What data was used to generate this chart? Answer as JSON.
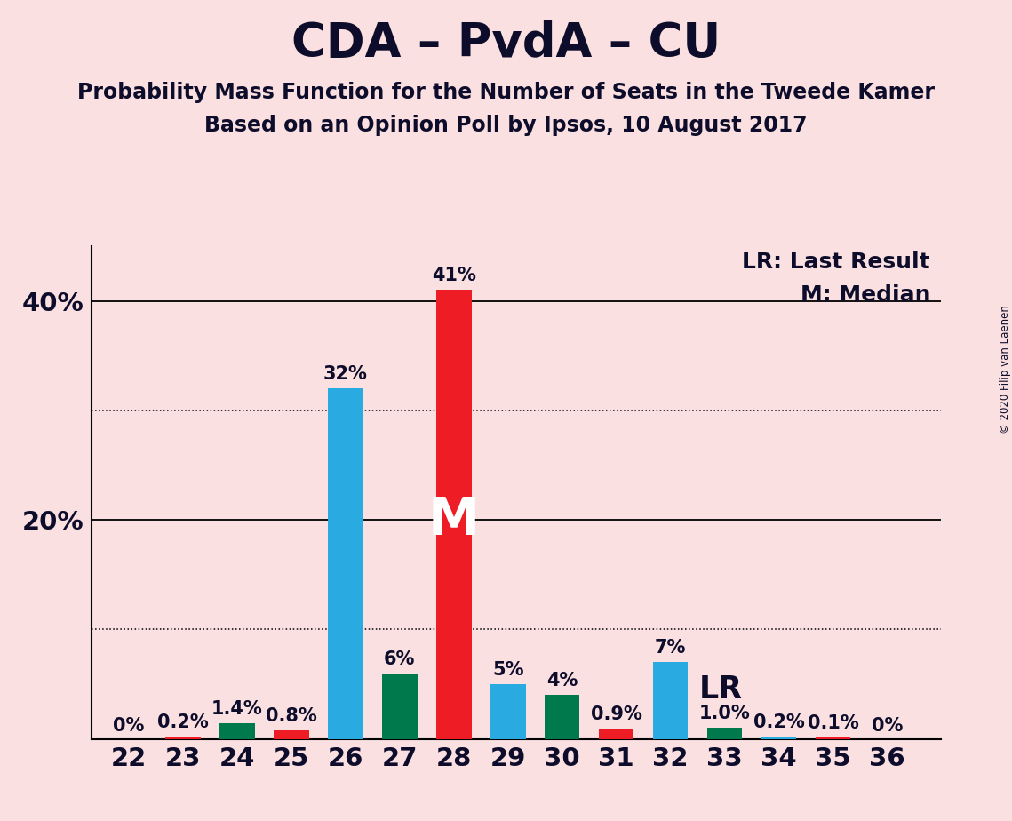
{
  "title": "CDA – PvdA – CU",
  "subtitle1": "Probability Mass Function for the Number of Seats in the Tweede Kamer",
  "subtitle2": "Based on an Opinion Poll by Ipsos, 10 August 2017",
  "copyright": "© 2020 Filip van Laenen",
  "legend1": "LR: Last Result",
  "legend2": "M: Median",
  "median_label": "M",
  "lr_label": "LR",
  "seats": [
    22,
    23,
    24,
    25,
    26,
    27,
    28,
    29,
    30,
    31,
    32,
    33,
    34,
    35,
    36
  ],
  "values": [
    0.0,
    0.2,
    1.4,
    0.8,
    32.0,
    6.0,
    41.0,
    5.0,
    4.0,
    0.9,
    7.0,
    1.0,
    0.2,
    0.1,
    0.0
  ],
  "labels": [
    "0%",
    "0.2%",
    "1.4%",
    "0.8%",
    "32%",
    "6%",
    "41%",
    "5%",
    "4%",
    "0.9%",
    "7%",
    "1.0%",
    "0.2%",
    "0.1%",
    "0%"
  ],
  "colors": [
    "#29ABE2",
    "#EE1C25",
    "#007A4D",
    "#EE1C25",
    "#29ABE2",
    "#007A4D",
    "#EE1C25",
    "#29ABE2",
    "#007A4D",
    "#EE1C25",
    "#29ABE2",
    "#007A4D",
    "#29ABE2",
    "#EE1C25",
    "#007A4D"
  ],
  "median_seat": 28,
  "lr_seat": 32,
  "background_color": "#FAE0E0",
  "bar_width": 0.65,
  "ylim": [
    0,
    45
  ],
  "yticks_shown": [
    20,
    40
  ],
  "ytick_labels_shown": [
    "20%",
    "40%"
  ],
  "solid_gridlines": [
    20,
    40
  ],
  "dotted_gridlines": [
    10,
    30
  ],
  "title_fontsize": 38,
  "subtitle_fontsize": 17,
  "label_fontsize": 15,
  "tick_fontsize": 21,
  "legend_fontsize": 18,
  "median_label_fontsize": 42,
  "lr_label_fontsize": 25,
  "text_color": "#0d0d2b"
}
